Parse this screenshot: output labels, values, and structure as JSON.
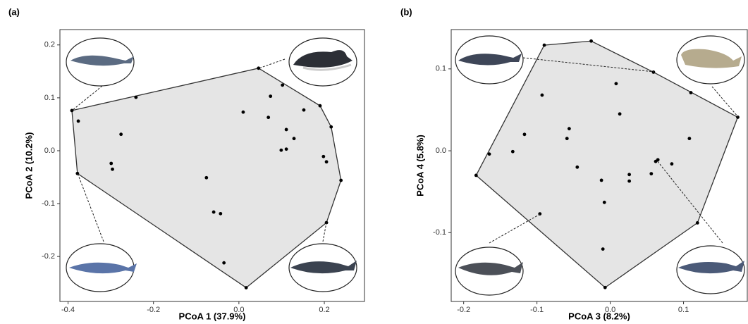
{
  "chart_data": [
    {
      "type": "scatter",
      "panel_label": "(a)",
      "x_label": "PCoA 1 (37.9%)",
      "y_label": "PCoA 2 (10.2%)",
      "color": "#000000",
      "hull_color": "#e5e5e5",
      "convex_hull": true,
      "xlim": [
        -0.419,
        0.294
      ],
      "ylim": [
        -0.285,
        0.229
      ],
      "xticks": [
        -0.4,
        -0.2,
        {
          "value": 0,
          "label": "0.0"
        },
        0.2
      ],
      "yticks": [
        -0.2,
        -0.1,
        {
          "value": 0,
          "label": "0.0"
        },
        0.1,
        0.2
      ],
      "x": [
        -0.391,
        -0.376,
        -0.378,
        -0.241,
        -0.276,
        -0.299,
        -0.296,
        -0.076,
        -0.059,
        -0.043,
        -0.035,
        0.017,
        0.01,
        0.046,
        0.074,
        0.069,
        0.102,
        0.111,
        0.099,
        0.111,
        0.129,
        0.152,
        0.19,
        0.216,
        0.198,
        0.205,
        0.239,
        0.205
      ],
      "y": [
        0.076,
        0.056,
        -0.043,
        0.101,
        0.031,
        -0.024,
        -0.035,
        -0.051,
        -0.116,
        -0.119,
        -0.212,
        -0.259,
        0.073,
        0.156,
        0.103,
        0.063,
        0.124,
        0.04,
        0.001,
        0.003,
        0.023,
        0.077,
        0.085,
        0.045,
        -0.011,
        -0.021,
        -0.056,
        -0.136
      ]
    },
    {
      "type": "scatter",
      "panel_label": "(b)",
      "x_label": "PCoA 3 (8.2%)",
      "y_label": "PCoA 4 (5.8%)",
      "color": "#000000",
      "hull_color": "#e5e5e5",
      "convex_hull": true,
      "xlim": [
        -0.217,
        0.187
      ],
      "ylim": [
        -0.184,
        0.148
      ],
      "xticks": [
        -0.2,
        -0.1,
        {
          "value": 0,
          "label": "0.0"
        },
        0.1
      ],
      "yticks": [
        -0.1,
        {
          "value": 0,
          "label": "0.0"
        },
        0.1
      ],
      "x": [
        -0.183,
        -0.165,
        -0.133,
        -0.117,
        -0.09,
        -0.093,
        -0.096,
        -0.026,
        -0.056,
        -0.059,
        -0.045,
        -0.012,
        -0.008,
        -0.01,
        -0.007,
        0.008,
        0.013,
        0.026,
        0.026,
        0.059,
        0.062,
        0.065,
        0.056,
        0.084,
        0.108,
        0.11,
        0.119,
        0.174
      ],
      "y": [
        -0.03,
        -0.004,
        -0.001,
        0.02,
        0.129,
        0.068,
        -0.077,
        0.134,
        0.027,
        0.015,
        -0.02,
        -0.036,
        -0.063,
        -0.12,
        -0.167,
        0.082,
        0.045,
        -0.029,
        -0.037,
        0.096,
        -0.013,
        -0.011,
        -0.028,
        -0.016,
        0.015,
        0.071,
        -0.088,
        0.041
      ]
    }
  ]
}
